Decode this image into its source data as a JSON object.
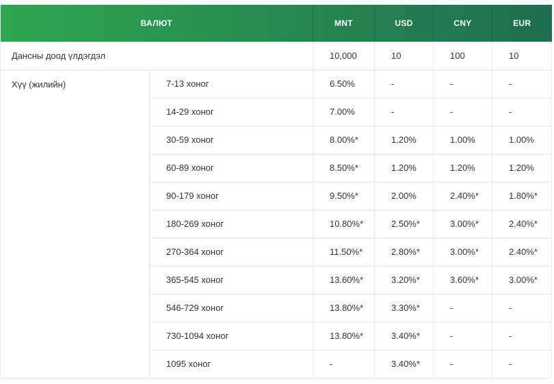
{
  "table": {
    "header": {
      "currency_label": "ВАЛЮТ",
      "columns": [
        "MNT",
        "USD",
        "CNY",
        "EUR"
      ]
    },
    "min_balance": {
      "label": "Дансны доод үлдэгдэл",
      "values": [
        "10,000",
        "10",
        "100",
        "10"
      ]
    },
    "interest": {
      "label": "Хүү (жилийн)",
      "rows": [
        {
          "period": "7-13 хоног",
          "values": [
            "6.50%",
            "-",
            "-",
            "-"
          ]
        },
        {
          "period": "14-29 хоног",
          "values": [
            "7.00%",
            "-",
            "-",
            "-"
          ]
        },
        {
          "period": "30-59 хоног",
          "values": [
            "8.00%*",
            "1.20%",
            "1.00%",
            "1.00%"
          ]
        },
        {
          "period": "60-89 хоног",
          "values": [
            "8.50%*",
            "1.20%",
            "1.20%",
            "1.20%"
          ]
        },
        {
          "period": "90-179 хоног",
          "values": [
            "9.50%*",
            "2.00%",
            "2.40%*",
            "1.80%*"
          ]
        },
        {
          "period": "180-269 хоног",
          "values": [
            "10.80%*",
            "2.50%*",
            "3.00%*",
            "2.40%*"
          ]
        },
        {
          "period": "270-364 хоног",
          "values": [
            "11.50%*",
            "2.80%*",
            "3.00%*",
            "2.40%*"
          ]
        },
        {
          "period": "365-545 хоног",
          "values": [
            "13.60%*",
            "3.20%*",
            "3.60%*",
            "3.00%*"
          ]
        },
        {
          "period": "546-729 хоног",
          "values": [
            "13.80%*",
            "3.30%*",
            "-",
            "-"
          ]
        },
        {
          "period": "730-1094 хоног",
          "values": [
            "13.80%*",
            "3.40%*",
            "-",
            "-"
          ]
        },
        {
          "period": "1095 хоног",
          "values": [
            "-",
            "3.40%*",
            "-",
            "-"
          ]
        }
      ]
    },
    "colors": {
      "header_gradient_start": "#2fa651",
      "header_gradient_end": "#1e6e4f",
      "body_border": "#e7e7e7",
      "body_text": "#333333"
    }
  },
  "chart_data": {
    "type": "table",
    "title": "",
    "columns": [
      "ВАЛЮТ",
      "",
      "MNT",
      "USD",
      "CNY",
      "EUR"
    ],
    "rows": [
      [
        "Дансны доод үлдэгдэл",
        "",
        "10,000",
        "10",
        "100",
        "10"
      ],
      [
        "Хүү (жилийн)",
        "7-13 хоног",
        "6.50%",
        "-",
        "-",
        "-"
      ],
      [
        "Хүү (жилийн)",
        "14-29 хоног",
        "7.00%",
        "-",
        "-",
        "-"
      ],
      [
        "Хүү (жилийн)",
        "30-59 хоног",
        "8.00%*",
        "1.20%",
        "1.00%",
        "1.00%"
      ],
      [
        "Хүү (жилийн)",
        "60-89 хоног",
        "8.50%*",
        "1.20%",
        "1.20%",
        "1.20%"
      ],
      [
        "Хүү (жилийн)",
        "90-179 хоног",
        "9.50%*",
        "2.00%",
        "2.40%*",
        "1.80%*"
      ],
      [
        "Хүү (жилийн)",
        "180-269 хоног",
        "10.80%*",
        "2.50%*",
        "3.00%*",
        "2.40%*"
      ],
      [
        "Хүү (жилийн)",
        "270-364 хоног",
        "11.50%*",
        "2.80%*",
        "3.00%*",
        "2.40%*"
      ],
      [
        "Хүү (жилийн)",
        "365-545 хоног",
        "13.60%*",
        "3.20%*",
        "3.60%*",
        "3.00%*"
      ],
      [
        "Хүү (жилийн)",
        "546-729 хоног",
        "13.80%*",
        "3.30%*",
        "-",
        "-"
      ],
      [
        "Хүү (жилийн)",
        "730-1094 хоног",
        "13.80%*",
        "3.40%*",
        "-",
        "-"
      ],
      [
        "Хүү (жилийн)",
        "1095 хоног",
        "-",
        "3.40%*",
        "-",
        "-"
      ]
    ]
  }
}
